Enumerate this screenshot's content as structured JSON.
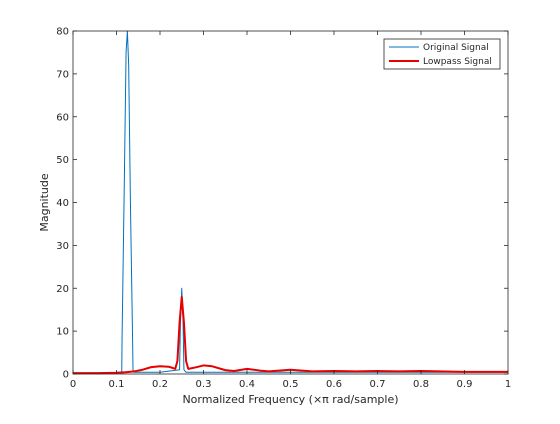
{
  "chart_data": {
    "type": "line",
    "title": "",
    "xlabel": "Normalized Frequency (×π rad/sample)",
    "ylabel": "Magnitude",
    "xlim": [
      0,
      1
    ],
    "ylim": [
      0,
      80
    ],
    "xticks": [
      0,
      0.1,
      0.2,
      0.3,
      0.4,
      0.5,
      0.6,
      0.7,
      0.8,
      0.9,
      1
    ],
    "xtick_labels": [
      "0",
      "0.1",
      "0.2",
      "0.3",
      "0.4",
      "0.5",
      "0.6",
      "0.7",
      "0.8",
      "0.9",
      "1"
    ],
    "yticks": [
      0,
      10,
      20,
      30,
      40,
      50,
      60,
      70,
      80
    ],
    "ytick_labels": [
      "0",
      "10",
      "20",
      "30",
      "40",
      "50",
      "60",
      "70",
      "80"
    ],
    "grid": false,
    "legend": {
      "position": "top-right",
      "entries": [
        "Original Signal",
        "Lowpass Signal"
      ]
    },
    "series": [
      {
        "name": "Original Signal",
        "color": "#0072bd",
        "x": [
          0,
          0.1,
          0.112,
          0.113,
          0.118,
          0.122,
          0.125,
          0.128,
          0.132,
          0.137,
          0.138,
          0.14,
          0.2,
          0.245,
          0.247,
          0.25,
          0.253,
          0.255,
          0.26,
          0.3,
          0.4,
          0.5,
          0.6,
          0.7,
          0.8,
          0.9,
          1
        ],
        "y": [
          0.2,
          0.3,
          0.5,
          10,
          45,
          75,
          80,
          72,
          40,
          8,
          0.5,
          0.4,
          0.4,
          1,
          12,
          20,
          12,
          1,
          0.4,
          0.4,
          0.4,
          0.4,
          0.4,
          0.4,
          0.4,
          0.4,
          0.4
        ]
      },
      {
        "name": "Lowpass Signal",
        "color": "#e60000",
        "x": [
          0,
          0.06,
          0.1,
          0.12,
          0.14,
          0.16,
          0.18,
          0.2,
          0.22,
          0.235,
          0.24,
          0.245,
          0.25,
          0.255,
          0.26,
          0.265,
          0.28,
          0.3,
          0.32,
          0.35,
          0.37,
          0.4,
          0.43,
          0.45,
          0.5,
          0.55,
          0.6,
          0.65,
          0.7,
          0.75,
          0.8,
          0.9,
          1
        ],
        "y": [
          0.2,
          0.2,
          0.3,
          0.4,
          0.6,
          1.0,
          1.6,
          1.8,
          1.7,
          1.2,
          3,
          12,
          18,
          12,
          3,
          1.2,
          1.5,
          2.0,
          1.8,
          0.9,
          0.7,
          1.2,
          0.8,
          0.6,
          1.0,
          0.6,
          0.7,
          0.6,
          0.7,
          0.6,
          0.7,
          0.5,
          0.5
        ]
      }
    ]
  }
}
